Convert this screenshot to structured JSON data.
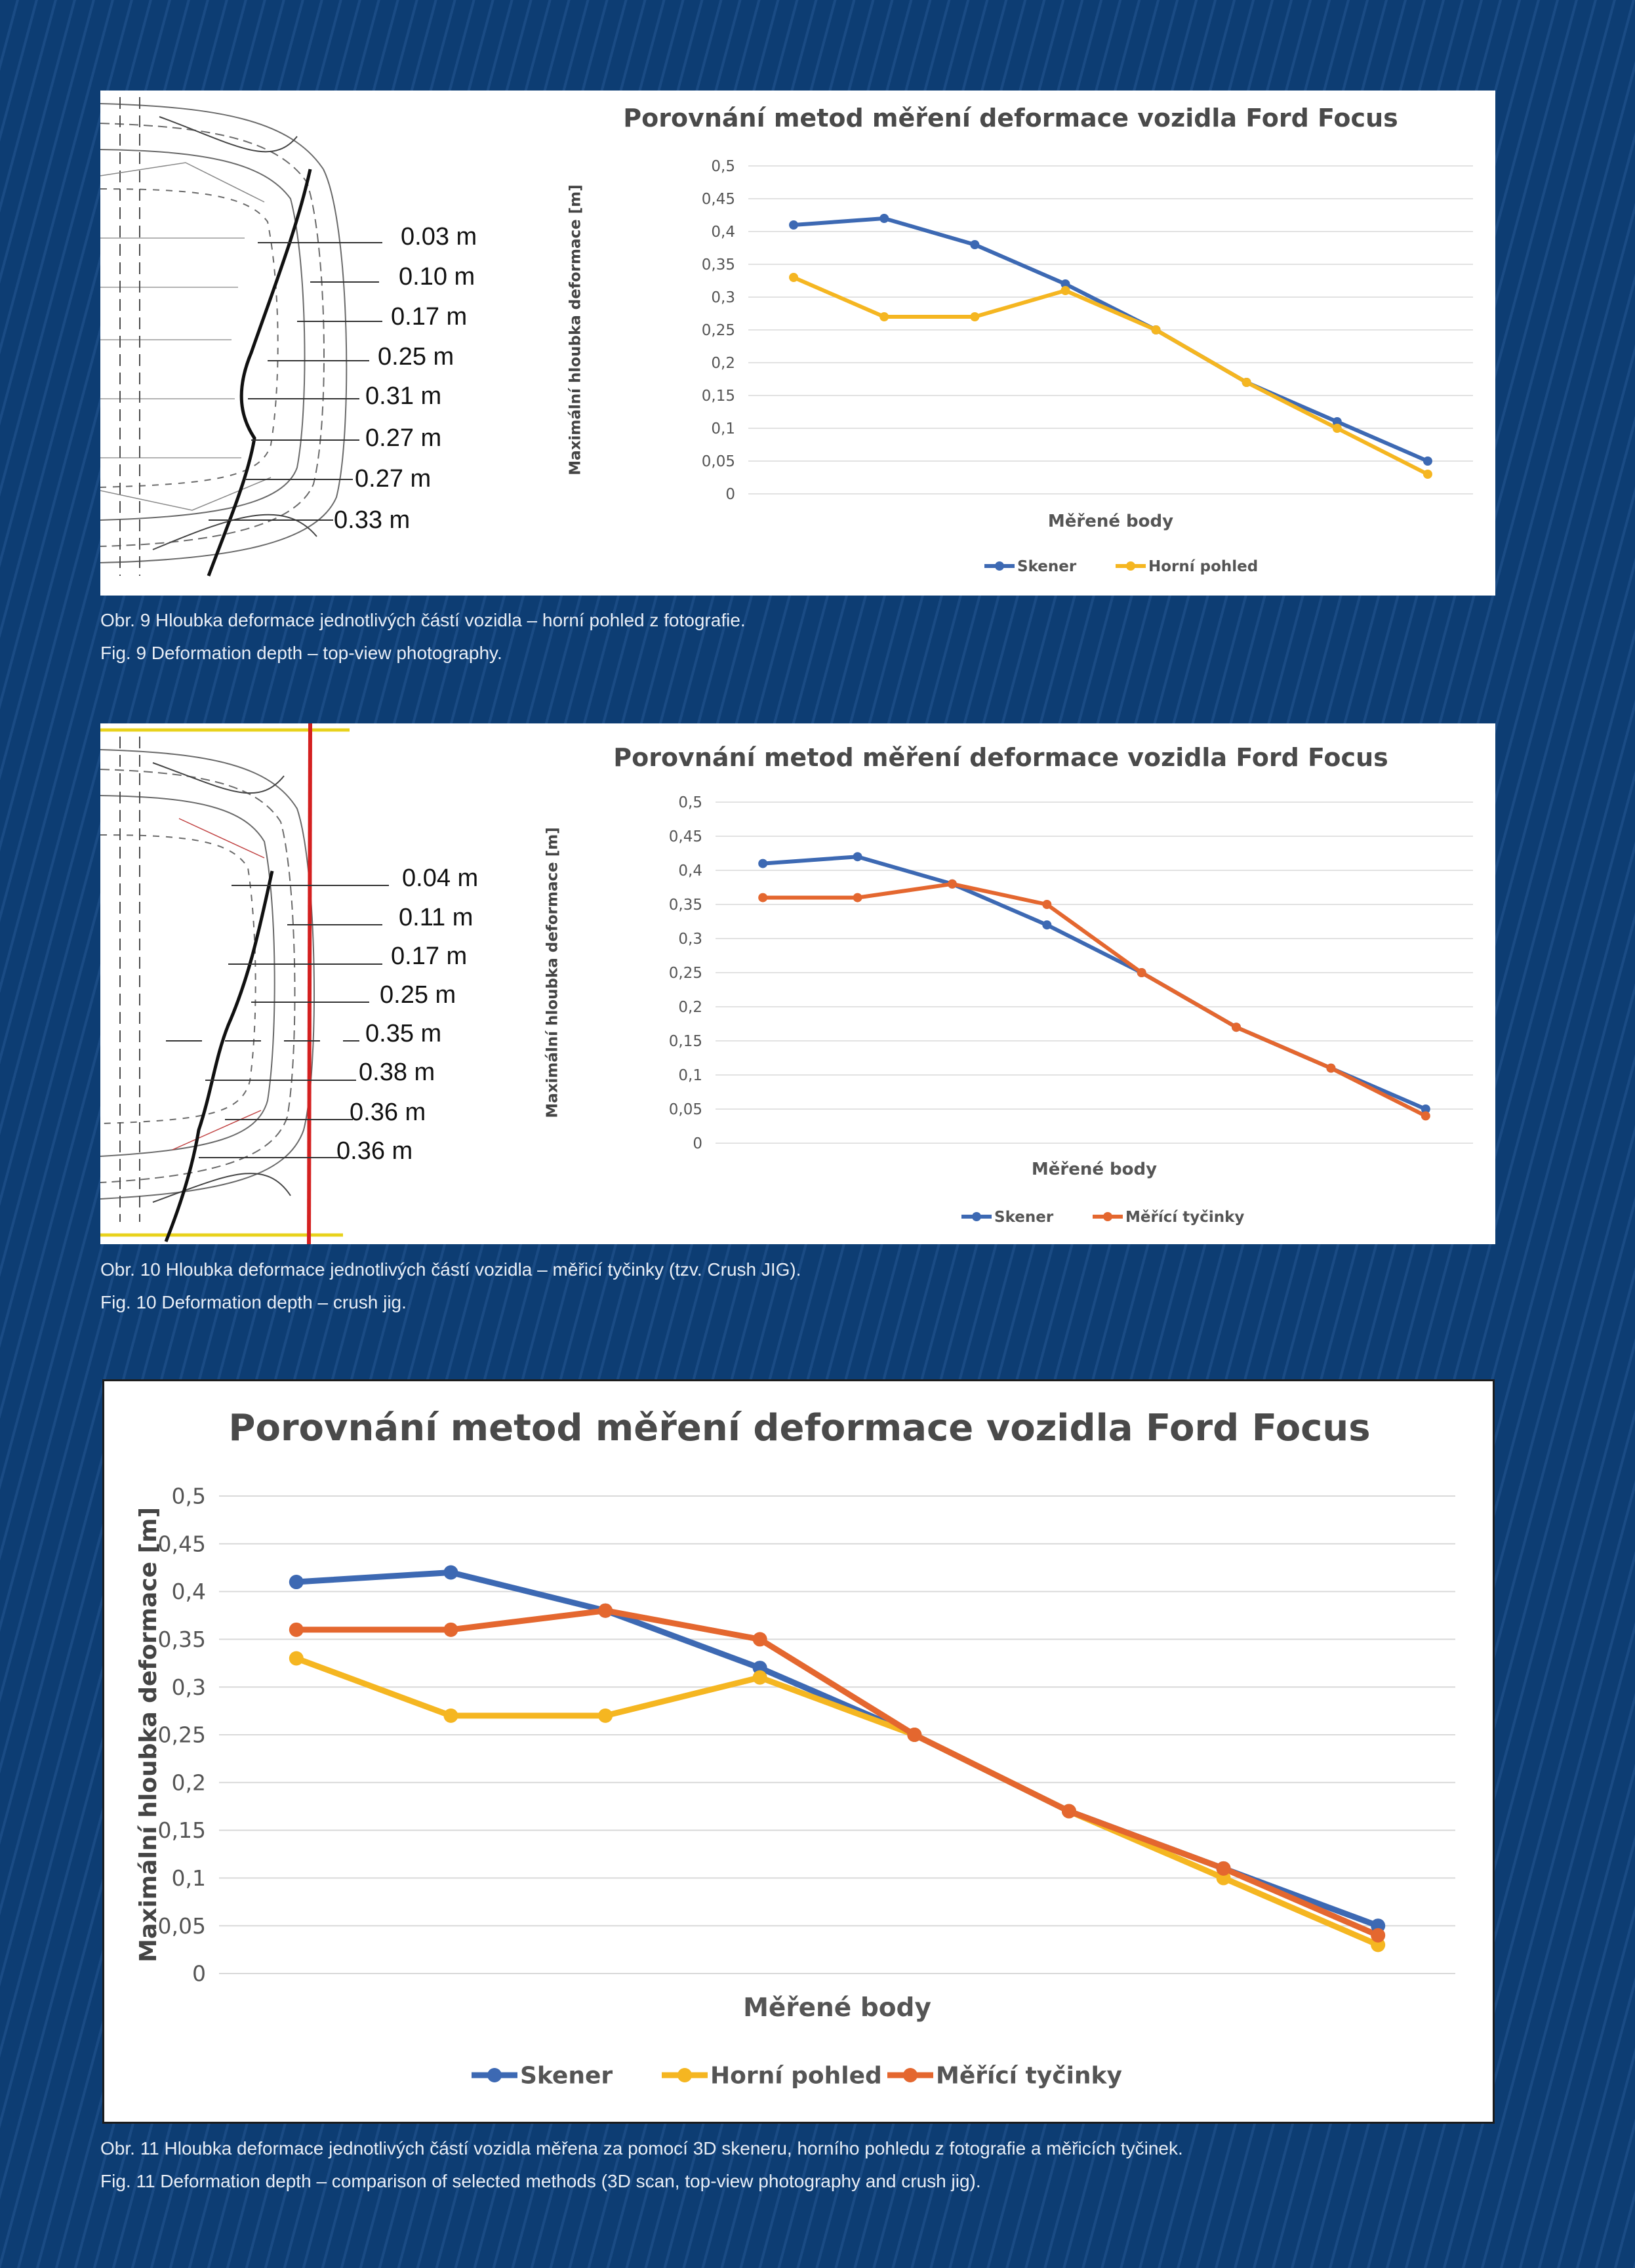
{
  "colors": {
    "background": "#0d3d73",
    "skener": "#3d69b3",
    "horni_pohled": "#f5b621",
    "merici_tycinky": "#e4672f",
    "gridline": "#d9d9d9",
    "caption_text": "#e9eef6"
  },
  "figure9": {
    "sketch_labels": [
      "0.03 m",
      "0.10 m",
      "0.17 m",
      "0.25 m",
      "0.31 m",
      "0.27 m",
      "0.27 m",
      "0.33 m"
    ],
    "caption_cz": "Obr. 9  Hloubka deformace jednotlivých částí vozidla – horní pohled z fotografie.",
    "caption_en": "Fig. 9  Deformation depth – top-view photography."
  },
  "figure10": {
    "sketch_labels": [
      "0.04 m",
      "0.11 m",
      "0.17 m",
      "0.25 m",
      "0.35 m",
      "0.38 m",
      "0.36 m",
      "0.36 m"
    ],
    "caption_cz": "Obr. 10  Hloubka deformace jednotlivých částí vozidla – měřicí tyčinky (tzv. Crush JIG).",
    "caption_en": "Fig. 10  Deformation depth – crush jig."
  },
  "figure11": {
    "caption_cz": "Obr. 11  Hloubka deformace jednotlivých částí vozidla měřena za pomocí 3D skeneru, horního pohledu z fotografie a měřicích tyčinek.",
    "caption_en": "Fig. 11  Deformation depth – comparison of selected methods (3D scan, top-view photography and crush jig)."
  },
  "chart_data": [
    {
      "type": "line",
      "title": "Porovnání metod měření deformace vozidla Ford Focus",
      "xlabel": "Měřené body",
      "ylabel": "Maximální  hloubka deformace [m]",
      "ylim": [
        0,
        0.5
      ],
      "yticks": [
        "0",
        "0,05",
        "0,1",
        "0,15",
        "0,2",
        "0,25",
        "0,3",
        "0,35",
        "0,4",
        "0,45",
        "0,5"
      ],
      "grid": true,
      "legend": "bottom",
      "series": [
        {
          "name": "Skener",
          "color": "#3d69b3",
          "values": [
            0.41,
            0.42,
            0.38,
            0.32,
            0.25,
            0.17,
            0.11,
            0.05
          ]
        },
        {
          "name": "Horní pohled",
          "color": "#f5b621",
          "values": [
            0.33,
            0.27,
            0.27,
            0.31,
            0.25,
            0.17,
            0.1,
            0.03
          ]
        }
      ]
    },
    {
      "type": "line",
      "title": "Porovnání metod měření deformace vozidla Ford Focus",
      "xlabel": "Měřené body",
      "ylabel": "Maximální  hloubka deformace [m]",
      "ylim": [
        0,
        0.5
      ],
      "yticks": [
        "0",
        "0,05",
        "0,1",
        "0,15",
        "0,2",
        "0,25",
        "0,3",
        "0,35",
        "0,4",
        "0,45",
        "0,5"
      ],
      "grid": true,
      "legend": "bottom",
      "series": [
        {
          "name": "Skener",
          "color": "#3d69b3",
          "values": [
            0.41,
            0.42,
            0.38,
            0.32,
            0.25,
            0.17,
            0.11,
            0.05
          ]
        },
        {
          "name": "Měřící tyčinky",
          "color": "#e4672f",
          "values": [
            0.36,
            0.36,
            0.38,
            0.35,
            0.25,
            0.17,
            0.11,
            0.04
          ]
        }
      ]
    },
    {
      "type": "line",
      "title": "Porovnání metod měření deformace vozidla Ford Focus",
      "xlabel": "Měřené body",
      "ylabel": "Maximální  hloubka deformace [m]",
      "ylim": [
        0,
        0.5
      ],
      "yticks": [
        "0",
        "0,05",
        "0,1",
        "0,15",
        "0,2",
        "0,25",
        "0,3",
        "0,35",
        "0,4",
        "0,45",
        "0,5"
      ],
      "grid": true,
      "legend": "bottom",
      "series": [
        {
          "name": "Skener",
          "color": "#3d69b3",
          "values": [
            0.41,
            0.42,
            0.38,
            0.32,
            0.25,
            0.17,
            0.11,
            0.05
          ]
        },
        {
          "name": "Horní pohled",
          "color": "#f5b621",
          "values": [
            0.33,
            0.27,
            0.27,
            0.31,
            0.25,
            0.17,
            0.1,
            0.03
          ]
        },
        {
          "name": "Měřící tyčinky",
          "color": "#e4672f",
          "values": [
            0.36,
            0.36,
            0.38,
            0.35,
            0.25,
            0.17,
            0.11,
            0.04
          ]
        }
      ]
    }
  ]
}
